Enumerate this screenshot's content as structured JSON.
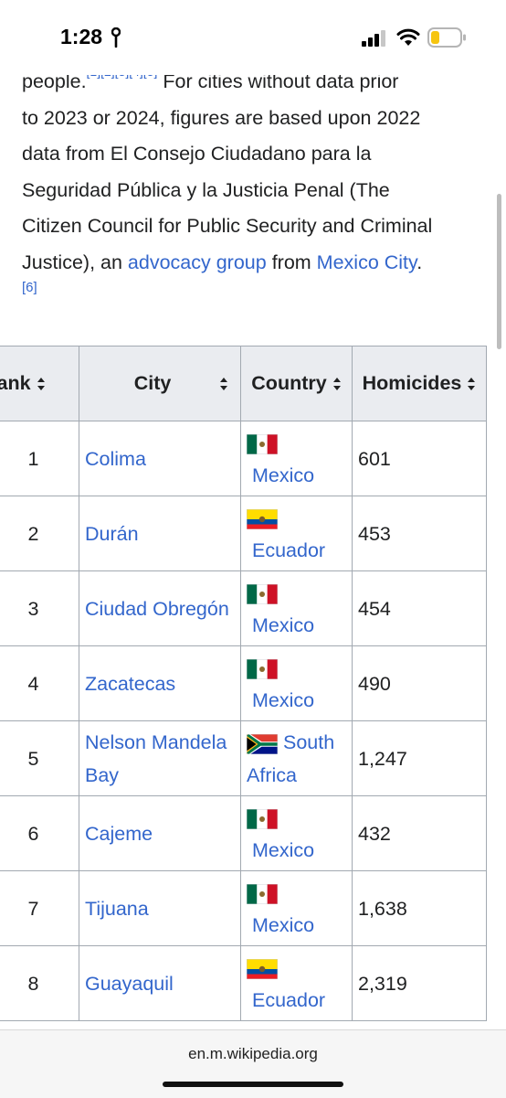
{
  "status_bar": {
    "time": "1:28"
  },
  "article": {
    "lines": [
      "For cities without data prior",
      "to 2023 or 2024, figures are based upon 2022",
      "data from El Consejo Ciudadano para la",
      "Seguridad Pública y la Justicia Penal (The",
      "Citizen Council for Public Security and Criminal"
    ],
    "first_word": "people.",
    "refs_inline": "[1][2][3][4][5]",
    "last_line_start": "Justice), an ",
    "link1": "advocacy group",
    "mid": " from ",
    "link2": "Mexico City",
    "end": ".",
    "ref6": "[6]"
  },
  "table": {
    "headers": [
      "Rank",
      "City",
      "Country",
      "Homicides"
    ],
    "rows": [
      {
        "rank": "1",
        "city": "Colima",
        "country": "Mexico",
        "flag": "mexico-flag",
        "homicides": "601"
      },
      {
        "rank": "2",
        "city": "Durán",
        "country": "Ecuador",
        "flag": "ecuador-flag",
        "homicides": "453"
      },
      {
        "rank": "3",
        "city": "Ciudad Obregón",
        "country": "Mexico",
        "flag": "mexico-flag",
        "homicides": "454"
      },
      {
        "rank": "4",
        "city": "Zacatecas",
        "country": "Mexico",
        "flag": "mexico-flag",
        "homicides": "490"
      },
      {
        "rank": "5",
        "city": "Nelson Mandela Bay",
        "country": "South Africa",
        "flag": "south-africa-flag",
        "homicides": "1,247"
      },
      {
        "rank": "6",
        "city": "Cajeme",
        "country": "Mexico",
        "flag": "mexico-flag",
        "homicides": "432"
      },
      {
        "rank": "7",
        "city": "Tijuana",
        "country": "Mexico",
        "flag": "mexico-flag",
        "homicides": "1,638"
      },
      {
        "rank": "8",
        "city": "Guayaquil",
        "country": "Ecuador",
        "flag": "ecuador-flag",
        "homicides": "2,319"
      }
    ]
  },
  "browser": {
    "url": "en.m.wikipedia.org"
  },
  "colors": {
    "link": "#3366cc",
    "header_bg": "#eaecf0",
    "border": "#a2a9b1"
  }
}
